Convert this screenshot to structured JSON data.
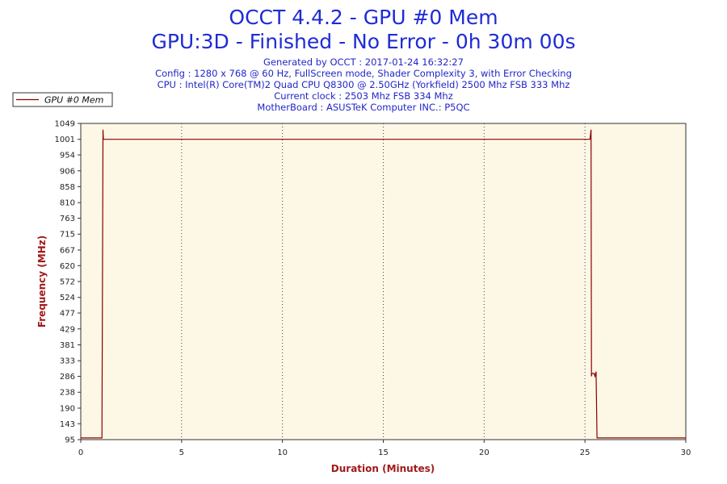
{
  "header": {
    "title_line1": "OCCT 4.4.2 - GPU #0 Mem",
    "title_line2": "GPU:3D - Finished - No Error - 0h 30m 00s",
    "info_lines": [
      "Generated by OCCT : 2017-01-24 16:32:27",
      "Config : 1280 x 768 @ 60 Hz, FullScreen mode, Shader Complexity 3, with Error Checking",
      "CPU : Intel(R) Core(TM)2 Quad CPU Q8300 @ 2.50GHz (Yorkfield) 2500 Mhz FSB 333 Mhz",
      "Current clock : 2503 Mhz FSB 334 Mhz",
      "MotherBoard : ASUSTeK Computer INC.: P5QC"
    ]
  },
  "chart_data": {
    "type": "line",
    "xlabel": "Duration (Minutes)",
    "ylabel": "Frequency (MHz)",
    "xlim": [
      0,
      30
    ],
    "ylim": [
      95,
      1049
    ],
    "x_ticks": [
      "0",
      "5",
      "10",
      "15",
      "20",
      "25",
      "30"
    ],
    "y_ticks": [
      "95",
      "143",
      "190",
      "238",
      "286",
      "333",
      "381",
      "429",
      "477",
      "524",
      "572",
      "620",
      "667",
      "715",
      "763",
      "810",
      "858",
      "906",
      "954",
      "1001",
      "1049"
    ],
    "grid": "vertical-dotted",
    "legend_position": "top-left",
    "series": [
      {
        "name": "GPU #0 Mem",
        "color": "#8b0000",
        "x": [
          0,
          1.05,
          1.1,
          1.12,
          1.15,
          25.2,
          25.25,
          25.3,
          25.32,
          25.35,
          25.45,
          25.5,
          25.55,
          25.6,
          30
        ],
        "y": [
          100,
          100,
          1030,
          1001,
          1001,
          1001,
          1001,
          1030,
          286,
          295,
          295,
          286,
          300,
          100,
          100
        ]
      }
    ]
  },
  "colors": {
    "plot_background": "#fdf7e6",
    "title": "#1f2bd6",
    "axis_label": "#a11a1a"
  }
}
